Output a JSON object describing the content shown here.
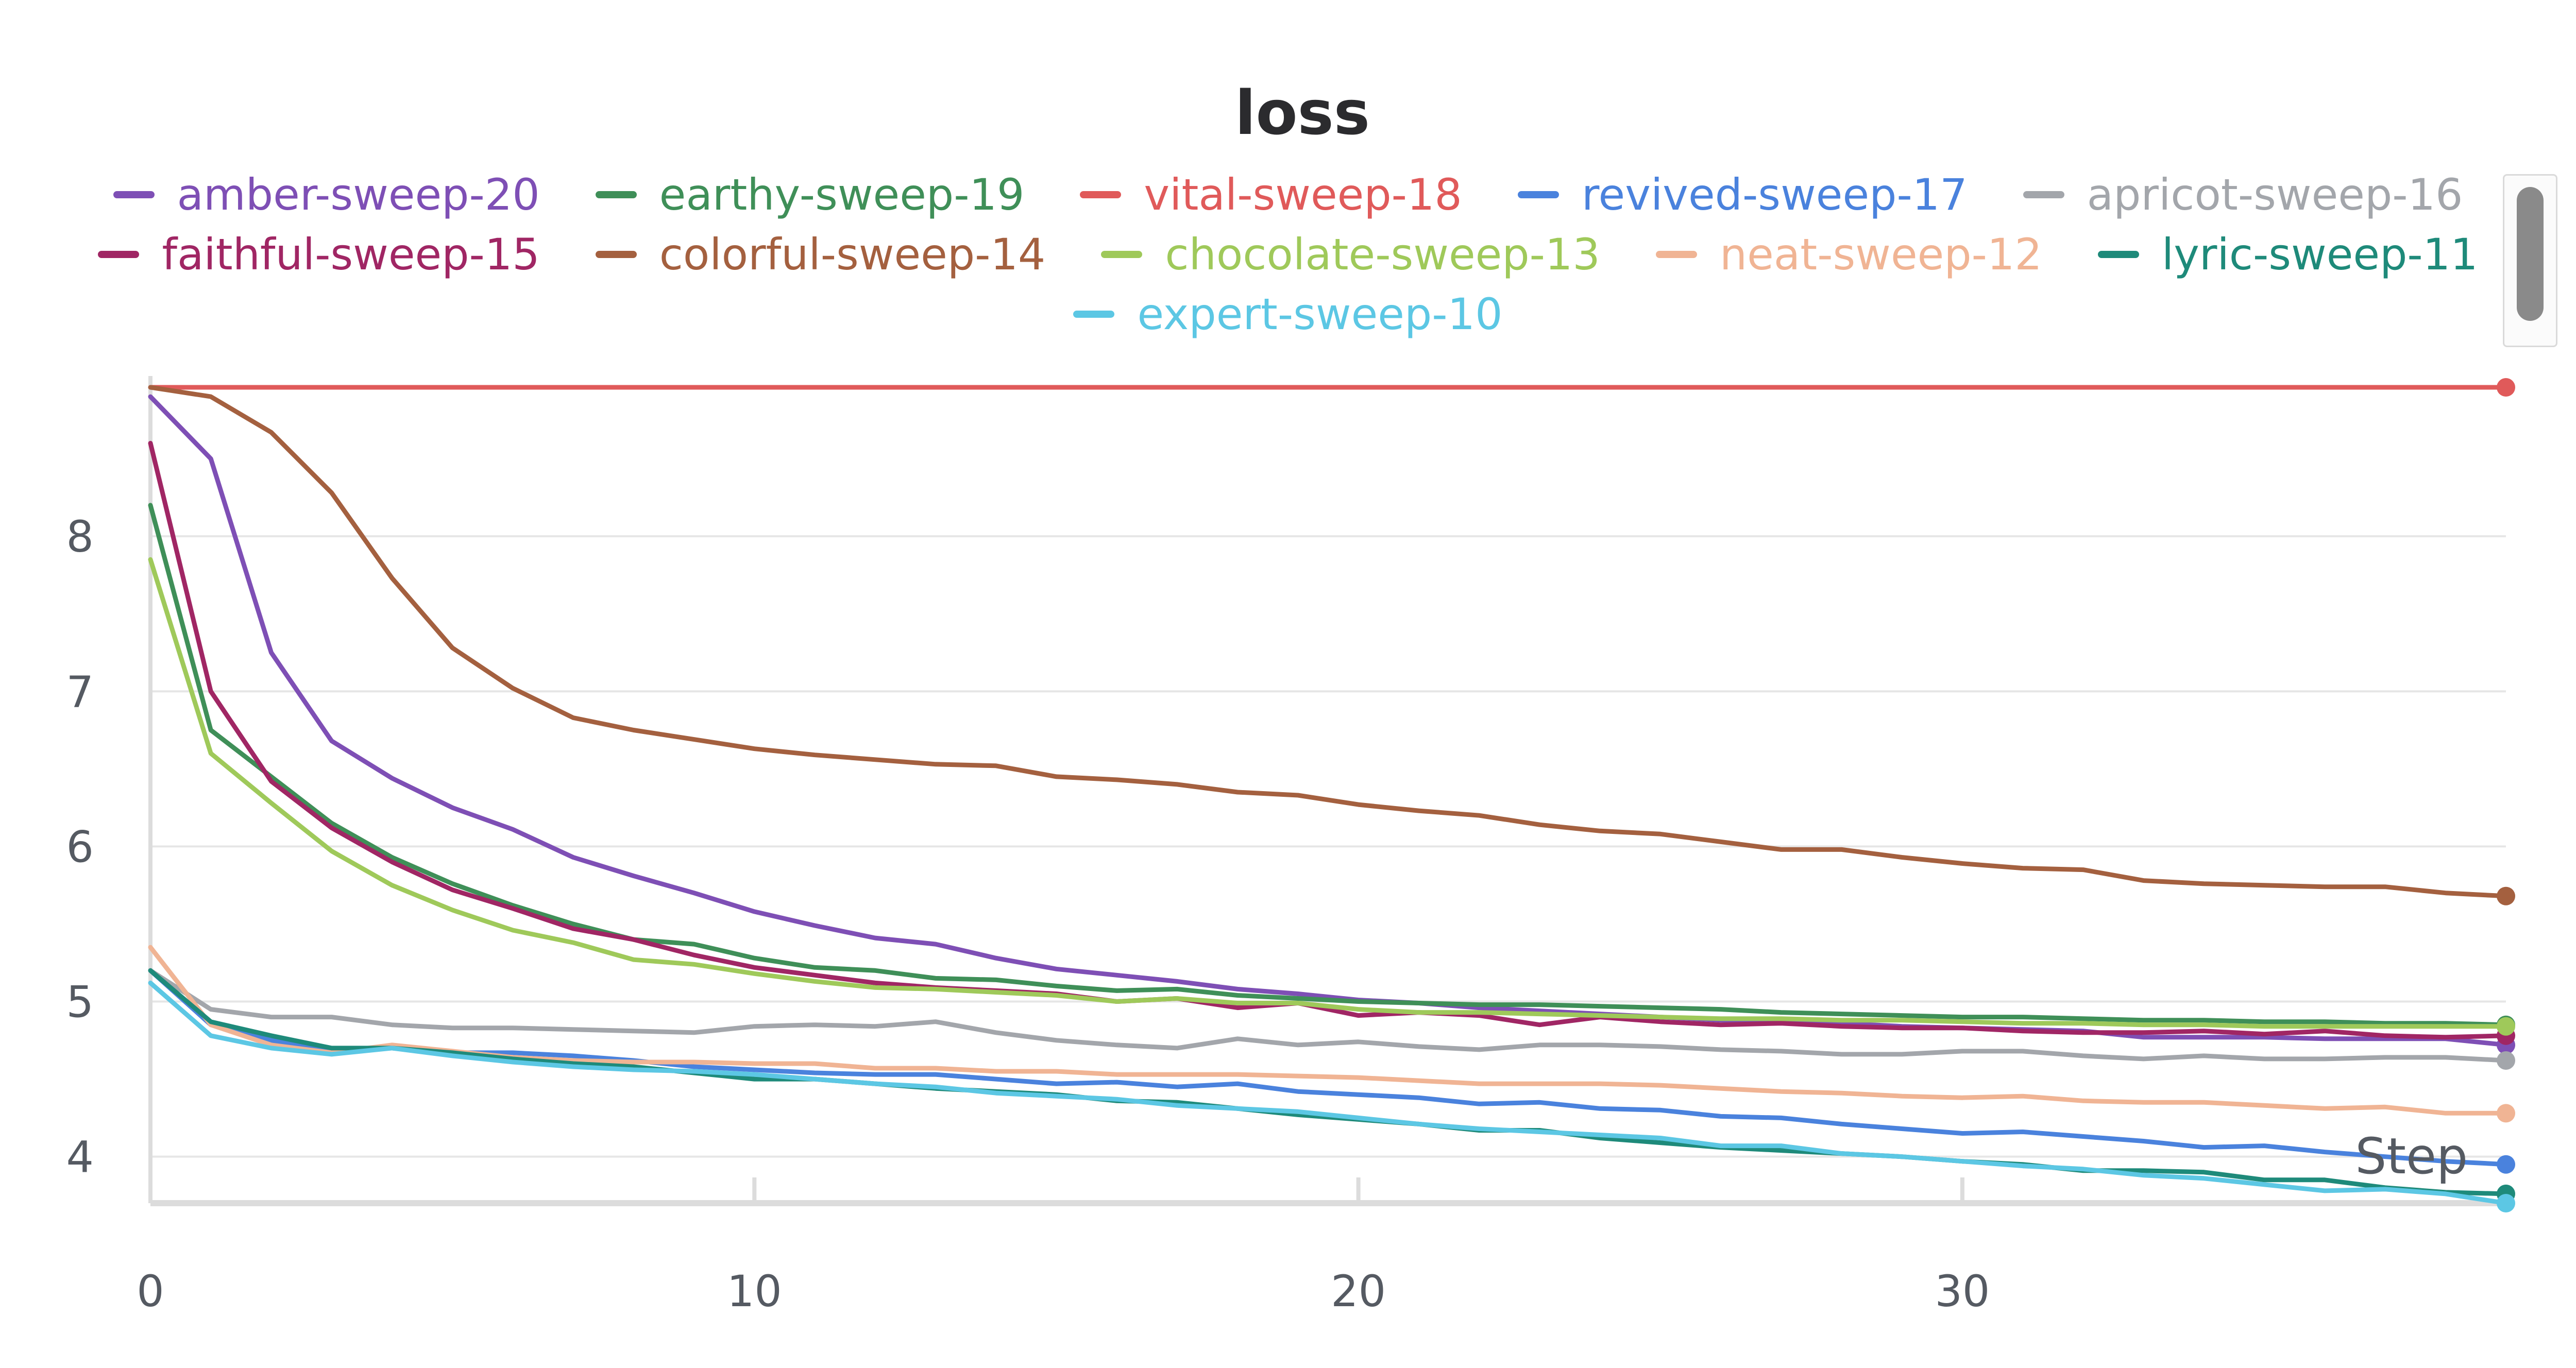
{
  "chart_data": {
    "type": "line",
    "title": "loss",
    "xlabel": "Step",
    "ylabel": "",
    "xlim": [
      0,
      39
    ],
    "ylim": [
      3.7,
      9.0
    ],
    "xticks": [
      "0",
      "10",
      "20",
      "30"
    ],
    "yticks": [
      "4",
      "5",
      "6",
      "7",
      "8"
    ],
    "legend_position": "top",
    "grid": true,
    "series": [
      {
        "name": "amber-sweep-20",
        "color": "#7e4fb5",
        "x": [
          0,
          1,
          2,
          3,
          4,
          5,
          6,
          7,
          8,
          9,
          10,
          11,
          12,
          13,
          14,
          15,
          16,
          17,
          18,
          19,
          20,
          21,
          22,
          23,
          24,
          25,
          26,
          27,
          28,
          29,
          30,
          31,
          32,
          33,
          34,
          35,
          36,
          37,
          38,
          39
        ],
        "y": [
          8.9,
          8.5,
          7.25,
          6.68,
          6.44,
          6.25,
          6.11,
          5.93,
          5.81,
          5.7,
          5.58,
          5.49,
          5.41,
          5.37,
          5.28,
          5.21,
          5.17,
          5.13,
          5.08,
          5.05,
          5.01,
          4.99,
          4.96,
          4.94,
          4.92,
          4.9,
          4.88,
          4.87,
          4.86,
          4.84,
          4.83,
          4.82,
          4.81,
          4.77,
          4.77,
          4.77,
          4.76,
          4.76,
          4.76,
          4.72
        ]
      },
      {
        "name": "earthy-sweep-19",
        "color": "#3f8f58",
        "x": [
          0,
          1,
          2,
          3,
          4,
          5,
          6,
          7,
          8,
          9,
          10,
          11,
          12,
          13,
          14,
          15,
          16,
          17,
          18,
          19,
          20,
          21,
          22,
          23,
          24,
          25,
          26,
          27,
          28,
          29,
          30,
          31,
          32,
          33,
          34,
          35,
          36,
          37,
          38,
          39
        ],
        "y": [
          8.2,
          6.75,
          6.45,
          6.15,
          5.93,
          5.76,
          5.62,
          5.5,
          5.4,
          5.37,
          5.28,
          5.22,
          5.2,
          5.15,
          5.14,
          5.1,
          5.07,
          5.08,
          5.04,
          5.02,
          5.0,
          4.99,
          4.98,
          4.98,
          4.97,
          4.96,
          4.95,
          4.93,
          4.92,
          4.91,
          4.9,
          4.9,
          4.89,
          4.88,
          4.88,
          4.87,
          4.87,
          4.86,
          4.86,
          4.85
        ]
      },
      {
        "name": "vital-sweep-18",
        "color": "#e05a5a",
        "x": [
          0,
          1,
          2,
          3,
          4,
          5,
          6,
          7,
          8,
          9,
          10,
          11,
          12,
          13,
          14,
          15,
          16,
          17,
          18,
          19,
          20,
          21,
          22,
          23,
          24,
          25,
          26,
          27,
          28,
          29,
          30,
          31,
          32,
          33,
          34,
          35,
          36,
          37,
          38,
          39
        ],
        "y": [
          8.96,
          8.96,
          8.96,
          8.96,
          8.96,
          8.96,
          8.96,
          8.96,
          8.96,
          8.96,
          8.96,
          8.96,
          8.96,
          8.96,
          8.96,
          8.96,
          8.96,
          8.96,
          8.96,
          8.96,
          8.96,
          8.96,
          8.96,
          8.96,
          8.96,
          8.96,
          8.96,
          8.96,
          8.96,
          8.96,
          8.96,
          8.96,
          8.96,
          8.96,
          8.96,
          8.96,
          8.96,
          8.96,
          8.96,
          8.96
        ]
      },
      {
        "name": "revived-sweep-17",
        "color": "#4a82dd",
        "x": [
          0,
          1,
          2,
          3,
          4,
          5,
          6,
          7,
          8,
          9,
          10,
          11,
          12,
          13,
          14,
          15,
          16,
          17,
          18,
          19,
          20,
          21,
          22,
          23,
          24,
          25,
          26,
          27,
          28,
          29,
          30,
          31,
          32,
          33,
          34,
          35,
          36,
          37,
          38,
          39
        ],
        "y": [
          5.2,
          4.85,
          4.75,
          4.68,
          4.7,
          4.67,
          4.67,
          4.65,
          4.62,
          4.58,
          4.56,
          4.54,
          4.53,
          4.53,
          4.5,
          4.47,
          4.48,
          4.45,
          4.47,
          4.42,
          4.4,
          4.38,
          4.34,
          4.35,
          4.31,
          4.3,
          4.26,
          4.25,
          4.21,
          4.18,
          4.15,
          4.16,
          4.13,
          4.1,
          4.06,
          4.07,
          4.03,
          4.0,
          3.97,
          3.95
        ]
      },
      {
        "name": "apricot-sweep-16",
        "color": "#a3a6ab",
        "x": [
          0,
          1,
          2,
          3,
          4,
          5,
          6,
          7,
          8,
          9,
          10,
          11,
          12,
          13,
          14,
          15,
          16,
          17,
          18,
          19,
          20,
          21,
          22,
          23,
          24,
          25,
          26,
          27,
          28,
          29,
          30,
          31,
          32,
          33,
          34,
          35,
          36,
          37,
          38,
          39
        ],
        "y": [
          5.2,
          4.95,
          4.9,
          4.9,
          4.85,
          4.83,
          4.83,
          4.82,
          4.81,
          4.8,
          4.84,
          4.85,
          4.84,
          4.87,
          4.8,
          4.75,
          4.72,
          4.7,
          4.76,
          4.72,
          4.74,
          4.71,
          4.69,
          4.72,
          4.72,
          4.71,
          4.69,
          4.68,
          4.66,
          4.66,
          4.68,
          4.68,
          4.65,
          4.63,
          4.65,
          4.63,
          4.63,
          4.64,
          4.64,
          4.62
        ]
      },
      {
        "name": "faithful-sweep-15",
        "color": "#a02664",
        "x": [
          0,
          1,
          2,
          3,
          4,
          5,
          6,
          7,
          8,
          9,
          10,
          11,
          12,
          13,
          14,
          15,
          16,
          17,
          18,
          19,
          20,
          21,
          22,
          23,
          24,
          25,
          26,
          27,
          28,
          29,
          30,
          31,
          32,
          33,
          34,
          35,
          36,
          37,
          38,
          39
        ],
        "y": [
          8.6,
          7.0,
          6.42,
          6.12,
          5.9,
          5.72,
          5.6,
          5.47,
          5.4,
          5.3,
          5.22,
          5.17,
          5.12,
          5.09,
          5.07,
          5.05,
          5.0,
          5.02,
          4.96,
          4.99,
          4.91,
          4.93,
          4.91,
          4.85,
          4.9,
          4.87,
          4.85,
          4.86,
          4.84,
          4.83,
          4.83,
          4.81,
          4.8,
          4.8,
          4.81,
          4.79,
          4.81,
          4.78,
          4.77,
          4.78
        ]
      },
      {
        "name": "colorful-sweep-14",
        "color": "#a4603f",
        "x": [
          0,
          1,
          2,
          3,
          4,
          5,
          6,
          7,
          8,
          9,
          10,
          11,
          12,
          13,
          14,
          15,
          16,
          17,
          18,
          19,
          20,
          21,
          22,
          23,
          24,
          25,
          26,
          27,
          28,
          29,
          30,
          31,
          32,
          33,
          34,
          35,
          36,
          37,
          38,
          39
        ],
        "y": [
          8.96,
          8.9,
          8.67,
          8.28,
          7.73,
          7.28,
          7.02,
          6.83,
          6.75,
          6.69,
          6.63,
          6.59,
          6.56,
          6.53,
          6.52,
          6.45,
          6.43,
          6.4,
          6.35,
          6.33,
          6.27,
          6.23,
          6.2,
          6.14,
          6.1,
          6.08,
          6.03,
          5.98,
          5.98,
          5.93,
          5.89,
          5.86,
          5.85,
          5.78,
          5.76,
          5.75,
          5.74,
          5.74,
          5.7,
          5.68
        ]
      },
      {
        "name": "chocolate-sweep-13",
        "color": "#9fc95a",
        "x": [
          0,
          1,
          2,
          3,
          4,
          5,
          6,
          7,
          8,
          9,
          10,
          11,
          12,
          13,
          14,
          15,
          16,
          17,
          18,
          19,
          20,
          21,
          22,
          23,
          24,
          25,
          26,
          27,
          28,
          29,
          30,
          31,
          32,
          33,
          34,
          35,
          36,
          37,
          38,
          39
        ],
        "y": [
          7.85,
          6.6,
          6.28,
          5.97,
          5.75,
          5.59,
          5.46,
          5.38,
          5.27,
          5.24,
          5.18,
          5.13,
          5.09,
          5.08,
          5.06,
          5.04,
          5.0,
          5.02,
          4.99,
          4.99,
          4.95,
          4.93,
          4.93,
          4.92,
          4.91,
          4.9,
          4.89,
          4.89,
          4.88,
          4.88,
          4.87,
          4.86,
          4.86,
          4.85,
          4.85,
          4.84,
          4.84,
          4.84,
          4.84,
          4.84
        ]
      },
      {
        "name": "neat-sweep-12",
        "color": "#f0b494",
        "x": [
          0,
          1,
          2,
          3,
          4,
          5,
          6,
          7,
          8,
          9,
          10,
          11,
          12,
          13,
          14,
          15,
          16,
          17,
          18,
          19,
          20,
          21,
          22,
          23,
          24,
          25,
          26,
          27,
          28,
          29,
          30,
          31,
          32,
          33,
          34,
          35,
          36,
          37,
          38,
          39
        ],
        "y": [
          5.35,
          4.85,
          4.72,
          4.67,
          4.72,
          4.68,
          4.64,
          4.62,
          4.61,
          4.61,
          4.6,
          4.6,
          4.57,
          4.57,
          4.55,
          4.55,
          4.53,
          4.53,
          4.53,
          4.52,
          4.51,
          4.49,
          4.47,
          4.47,
          4.47,
          4.46,
          4.44,
          4.42,
          4.41,
          4.39,
          4.38,
          4.39,
          4.36,
          4.35,
          4.35,
          4.33,
          4.31,
          4.32,
          4.28,
          4.28
        ]
      },
      {
        "name": "lyric-sweep-11",
        "color": "#1e8a7a",
        "x": [
          0,
          1,
          2,
          3,
          4,
          5,
          6,
          7,
          8,
          9,
          10,
          11,
          12,
          13,
          14,
          15,
          16,
          17,
          18,
          19,
          20,
          21,
          22,
          23,
          24,
          25,
          26,
          27,
          28,
          29,
          30,
          31,
          32,
          33,
          34,
          35,
          36,
          37,
          38,
          39
        ],
        "y": [
          5.2,
          4.87,
          4.78,
          4.7,
          4.7,
          4.67,
          4.63,
          4.6,
          4.58,
          4.54,
          4.5,
          4.5,
          4.47,
          4.44,
          4.42,
          4.4,
          4.36,
          4.35,
          4.31,
          4.27,
          4.24,
          4.21,
          4.17,
          4.17,
          4.12,
          4.09,
          4.06,
          4.04,
          4.02,
          4.0,
          3.97,
          3.95,
          3.91,
          3.91,
          3.9,
          3.85,
          3.85,
          3.8,
          3.77,
          3.76
        ]
      },
      {
        "name": "expert-sweep-10",
        "color": "#5cc7e4",
        "x": [
          0,
          1,
          2,
          3,
          4,
          5,
          6,
          7,
          8,
          9,
          10,
          11,
          12,
          13,
          14,
          15,
          16,
          17,
          18,
          19,
          20,
          21,
          22,
          23,
          24,
          25,
          26,
          27,
          28,
          29,
          30,
          31,
          32,
          33,
          34,
          35,
          36,
          37,
          38,
          39
        ],
        "y": [
          5.12,
          4.78,
          4.7,
          4.66,
          4.7,
          4.65,
          4.61,
          4.58,
          4.56,
          4.55,
          4.53,
          4.5,
          4.47,
          4.45,
          4.41,
          4.39,
          4.37,
          4.33,
          4.31,
          4.29,
          4.25,
          4.21,
          4.18,
          4.16,
          4.14,
          4.12,
          4.07,
          4.07,
          4.02,
          4.0,
          3.97,
          3.94,
          3.92,
          3.88,
          3.86,
          3.82,
          3.78,
          3.79,
          3.76,
          3.7
        ]
      }
    ]
  }
}
